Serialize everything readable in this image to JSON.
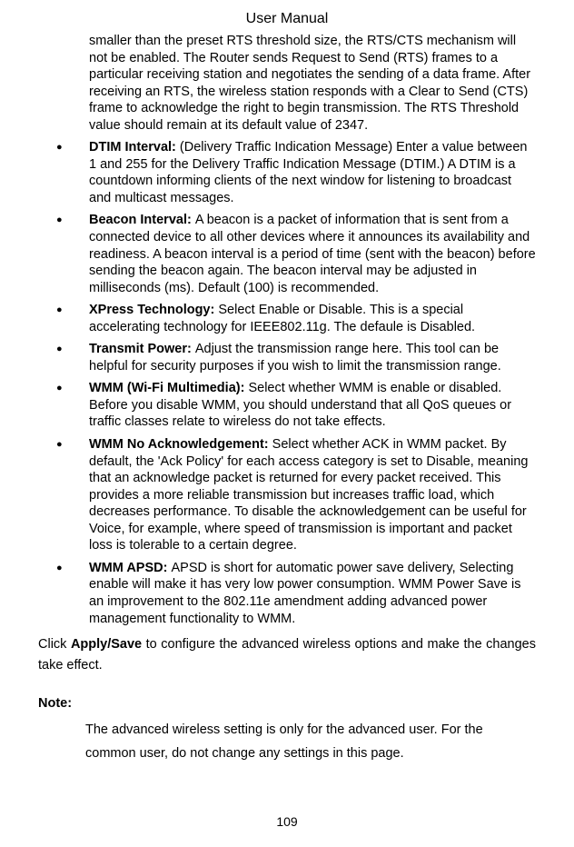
{
  "header": "User Manual",
  "continuation": "smaller than the preset RTS threshold size, the RTS/CTS mechanism will not be enabled. The Router sends Request to Send (RTS) frames to a particular receiving station and negotiates the sending of a data frame. After receiving an RTS, the wireless station responds with a Clear to Send (CTS) frame to acknowledge the right to begin transmission. The RTS Threshold value should remain at its default value of 2347.",
  "bullets": [
    {
      "term": "DTIM Interval: ",
      "text": "(Delivery Traffic Indication Message) Enter a value between 1 and 255 for the Delivery Traffic Indication Message (DTIM.) A DTIM is a countdown informing clients of the next window for listening to broadcast and multicast messages."
    },
    {
      "term": "Beacon Interval: ",
      "text": "A beacon is a packet of information that is sent from a connected device to all other devices where it announces its availability and readiness. A beacon interval is a period of time (sent with the beacon) before sending the beacon again. The beacon interval may be adjusted in milliseconds (ms).   Default (100) is recommended."
    },
    {
      "term": "XPress Technology: ",
      "text": "Select Enable or Disable. This is a special accelerating   technology for IEEE802.11g. The defaule is Disabled."
    },
    {
      "term": "Transmit Power: ",
      "text": "Adjust the transmission range here. This tool can be helpful for security purposes if you wish to limit the transmission range."
    },
    {
      "term": "WMM (Wi-Fi Multimedia): ",
      "text": "Select whether WMM is enable or disabled. Before you disable WMM, you should understand that all QoS queues or traffic classes relate to wireless do not take effects."
    },
    {
      "term": "WMM No Acknowledgement: ",
      "text": "Select whether ACK in WMM packet. By default, the 'Ack Policy' for each access category is set to Disable, meaning that an acknowledge packet is returned for every packet received. This provides a more reliable transmission but increases traffic load, which decreases performance. To disable the acknowledgement can be useful for Voice, for example, where speed of transmission is important and packet loss is tolerable to a certain degree."
    },
    {
      "term": "WMM APSD: ",
      "text": "APSD is short for automatic power save delivery, Selecting enable will make it has very low power consumption. WMM Power Save is an improvement to the 802.11e amendment adding advanced power management functionality to WMM."
    }
  ],
  "footer_prefix": "Click ",
  "footer_bold": "Apply/Save",
  "footer_suffix": " to configure the advanced wireless options and make the changes take effect.",
  "note_label": "Note:",
  "note_text": "The advanced wireless setting is only for the advanced user. For the common user, do not change any settings in this page.",
  "page_number": "109",
  "bullet_glyph": "●"
}
